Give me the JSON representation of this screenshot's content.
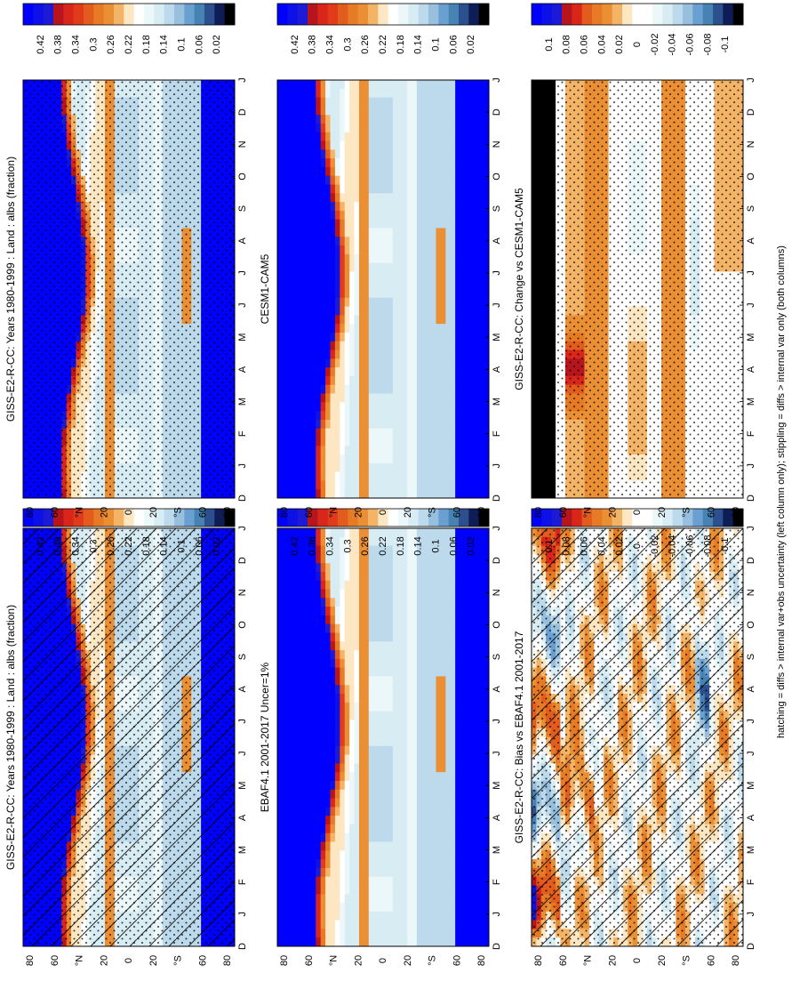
{
  "footnote": "hatching = diffs > internal var+obs uncertainty (left column only); stippling = diffs > internal var only (both columns)",
  "palettes": {
    "abs": [
      "#000000",
      "#0f1d57",
      "#2c4f8d",
      "#4682b4",
      "#6a9fd1",
      "#98c0de",
      "#bcdaeb",
      "#d8ecf3",
      "#ecf7fa",
      "#ffffff",
      "#fde7c3",
      "#f4b467",
      "#eb8f35",
      "#e67a25",
      "#e25c1e",
      "#e13b1c",
      "#d8261b",
      "#b6151d",
      "#1d1ad6",
      "#0e10e8",
      "#0000ff"
    ],
    "diff": [
      "#000000",
      "#0f1d57",
      "#2c4f8d",
      "#4682b4",
      "#6a9fd1",
      "#98c0de",
      "#bcdaeb",
      "#d8ecf3",
      "#ecf7fa",
      "#ffffff",
      "#ffffff",
      "#fde7c3",
      "#f4b467",
      "#eb8f35",
      "#e67a25",
      "#e25c1e",
      "#d8261b",
      "#b6151d",
      "#1d1ad6",
      "#0e10e8",
      "#0000ff"
    ]
  },
  "chart_data": [
    {
      "type": "heatmap",
      "title": "GISS-E2-R-CC: Years 1980-1999 : Land : albs (fraction)",
      "x_tick_labels": [
        "D",
        "J",
        "F",
        "M",
        "A",
        "M",
        "J",
        "J",
        "A",
        "S",
        "O",
        "N",
        "D",
        "J"
      ],
      "y_tick_labels": [
        "80",
        "60",
        "°N",
        "20",
        "0",
        "20",
        "°S",
        "60",
        "80"
      ],
      "colorbar_labels": [
        "0.42",
        "0.38",
        "0.34",
        "0.3",
        "0.26",
        "0.22",
        "0.18",
        "0.14",
        "0.1",
        "0.06",
        "0.02"
      ],
      "palette": "abs",
      "vmin": 0.0,
      "vmax": 0.44,
      "field": "abs",
      "hatching": true,
      "stippling": true
    },
    {
      "type": "heatmap",
      "title": "GISS-E2-R-CC: Years 1980-1999 : Land : albs (fraction)",
      "x_tick_labels": [
        "D",
        "J",
        "F",
        "M",
        "A",
        "M",
        "J",
        "J",
        "A",
        "S",
        "O",
        "N",
        "D",
        "J"
      ],
      "y_tick_labels": [
        "80",
        "60",
        "°N",
        "20",
        "0",
        "20",
        "°S",
        "60",
        "80"
      ],
      "colorbar_labels": [
        "0.42",
        "0.38",
        "0.34",
        "0.3",
        "0.26",
        "0.22",
        "0.18",
        "0.14",
        "0.1",
        "0.06",
        "0.02"
      ],
      "palette": "abs",
      "vmin": 0.0,
      "vmax": 0.44,
      "field": "abs",
      "hatching": false,
      "stippling": true
    },
    {
      "type": "heatmap",
      "title": "EBAF4.1 2001-2017 Uncer=1%",
      "x_tick_labels": [
        "D",
        "J",
        "F",
        "M",
        "A",
        "M",
        "J",
        "J",
        "A",
        "S",
        "O",
        "N",
        "D",
        "J"
      ],
      "y_tick_labels": [
        "80",
        "60",
        "°N",
        "20",
        "0",
        "20",
        "°S",
        "60",
        "80"
      ],
      "colorbar_labels": [
        "0.42",
        "0.38",
        "0.34",
        "0.3",
        "0.26",
        "0.22",
        "0.18",
        "0.14",
        "0.1",
        "0.06",
        "0.02"
      ],
      "palette": "abs",
      "vmin": 0.0,
      "vmax": 0.44,
      "field": "abs",
      "hatching": false,
      "stippling": false
    },
    {
      "type": "heatmap",
      "title": "CESM1-CAM5",
      "x_tick_labels": [
        "D",
        "J",
        "F",
        "M",
        "A",
        "M",
        "J",
        "J",
        "A",
        "S",
        "O",
        "N",
        "D",
        "J"
      ],
      "y_tick_labels": [
        "80",
        "60",
        "°N",
        "20",
        "0",
        "20",
        "°S",
        "60",
        "80"
      ],
      "colorbar_labels": [
        "0.42",
        "0.38",
        "0.34",
        "0.3",
        "0.26",
        "0.22",
        "0.18",
        "0.14",
        "0.1",
        "0.06",
        "0.02"
      ],
      "palette": "abs",
      "vmin": 0.0,
      "vmax": 0.44,
      "field": "abs",
      "hatching": false,
      "stippling": false
    },
    {
      "type": "heatmap",
      "title": "GISS-E2-R-CC: Bias vs EBAF4.1 2001-2017",
      "x_tick_labels": [
        "D",
        "J",
        "F",
        "M",
        "A",
        "M",
        "J",
        "J",
        "A",
        "S",
        "O",
        "N",
        "D",
        "J"
      ],
      "y_tick_labels": [
        "80",
        "60",
        "°N",
        "20",
        "0",
        "20",
        "°S",
        "60",
        "80"
      ],
      "colorbar_labels": [
        "0.1",
        "0.08",
        "0.06",
        "0.04",
        "0.02",
        "0",
        "-0.02",
        "-0.04",
        "-0.06",
        "-0.08",
        "-0.1"
      ],
      "palette": "diff",
      "vmin": -0.11,
      "vmax": 0.11,
      "field": "bias",
      "hatching": true,
      "stippling": true
    },
    {
      "type": "heatmap",
      "title": "GISS-E2-R-CC: Change vs CESM1-CAM5",
      "x_tick_labels": [
        "D",
        "J",
        "F",
        "M",
        "A",
        "M",
        "J",
        "J",
        "A",
        "S",
        "O",
        "N",
        "D",
        "J"
      ],
      "y_tick_labels": [
        "80",
        "60",
        "°N",
        "20",
        "0",
        "20",
        "°S",
        "60",
        "80"
      ],
      "colorbar_labels": [
        "0.1",
        "0.08",
        "0.06",
        "0.04",
        "0.02",
        "0",
        "-0.02",
        "-0.04",
        "-0.06",
        "-0.08",
        "-0.1"
      ],
      "palette": "diff",
      "vmin": -0.11,
      "vmax": 0.11,
      "field": "change",
      "hatching": false,
      "stippling": true
    }
  ]
}
